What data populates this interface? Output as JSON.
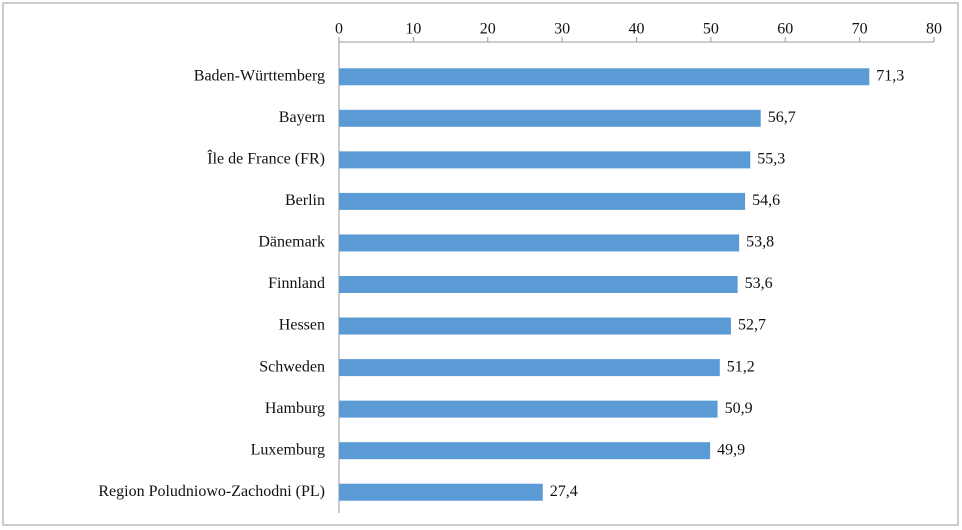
{
  "chart_data": {
    "type": "bar",
    "orientation": "horizontal",
    "categories": [
      "Baden-Württemberg",
      "Bayern",
      "Île de France (FR)",
      "Berlin",
      "Dänemark",
      "Finnland",
      "Hessen",
      "Schweden",
      "Hamburg",
      "Luxemburg",
      "Region Poludniowo-Zachodni (PL)"
    ],
    "values": [
      71.3,
      56.7,
      55.3,
      54.6,
      53.8,
      53.6,
      52.7,
      51.2,
      50.9,
      49.9,
      27.4
    ],
    "value_labels": [
      "71,3",
      "56,7",
      "55,3",
      "54,6",
      "53,8",
      "53,6",
      "52,7",
      "51,2",
      "50,9",
      "49,9",
      "27,4"
    ],
    "color": "#5b9bd5",
    "xlim": [
      0,
      80
    ],
    "xticks": [
      0,
      10,
      20,
      30,
      40,
      50,
      60,
      70,
      80
    ],
    "grid": false
  }
}
